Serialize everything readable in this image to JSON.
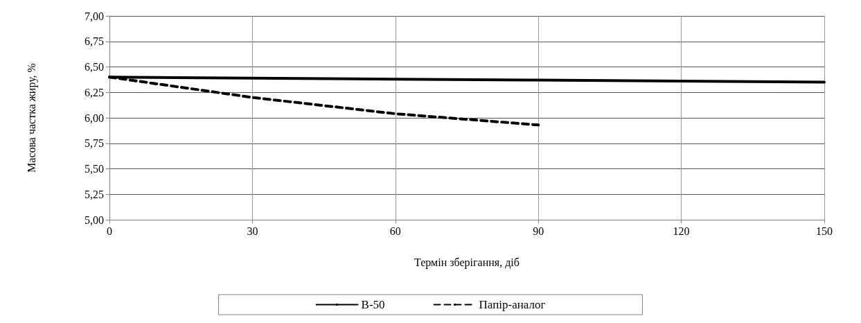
{
  "chart_data": {
    "type": "line",
    "xlabel": "Термін зберігання, діб",
    "ylabel": "Масова частка жиру, %",
    "xlim": [
      0,
      150
    ],
    "xticks": [
      0,
      30,
      60,
      90,
      120,
      150
    ],
    "ylim": [
      5,
      7
    ],
    "yticks": [
      {
        "value": 5,
        "label": "5,00"
      },
      {
        "value": 5.25,
        "label": "5,25"
      },
      {
        "value": 5.5,
        "label": "5,50"
      },
      {
        "value": 5.75,
        "label": "5,75"
      },
      {
        "value": 6,
        "label": "6,00"
      },
      {
        "value": 6.25,
        "label": "6,25"
      },
      {
        "value": 6.5,
        "label": "6,50"
      },
      {
        "value": 6.75,
        "label": "6,75"
      },
      {
        "value": 7,
        "label": "7,00"
      }
    ],
    "grid": true,
    "legend": "bottom",
    "marker": "none",
    "series": [
      {
        "name": "В-50",
        "color": "#000000",
        "line_style": "solid",
        "x": [
          0,
          30,
          60,
          90,
          120,
          150
        ],
        "values": [
          6.4,
          6.39,
          6.38,
          6.37,
          6.36,
          6.35
        ]
      },
      {
        "name": "Папір-аналог",
        "color": "#000000",
        "line_style": "dashed",
        "x": [
          0,
          30,
          60,
          90
        ],
        "values": [
          6.4,
          6.2,
          6.04,
          5.93
        ]
      }
    ]
  }
}
